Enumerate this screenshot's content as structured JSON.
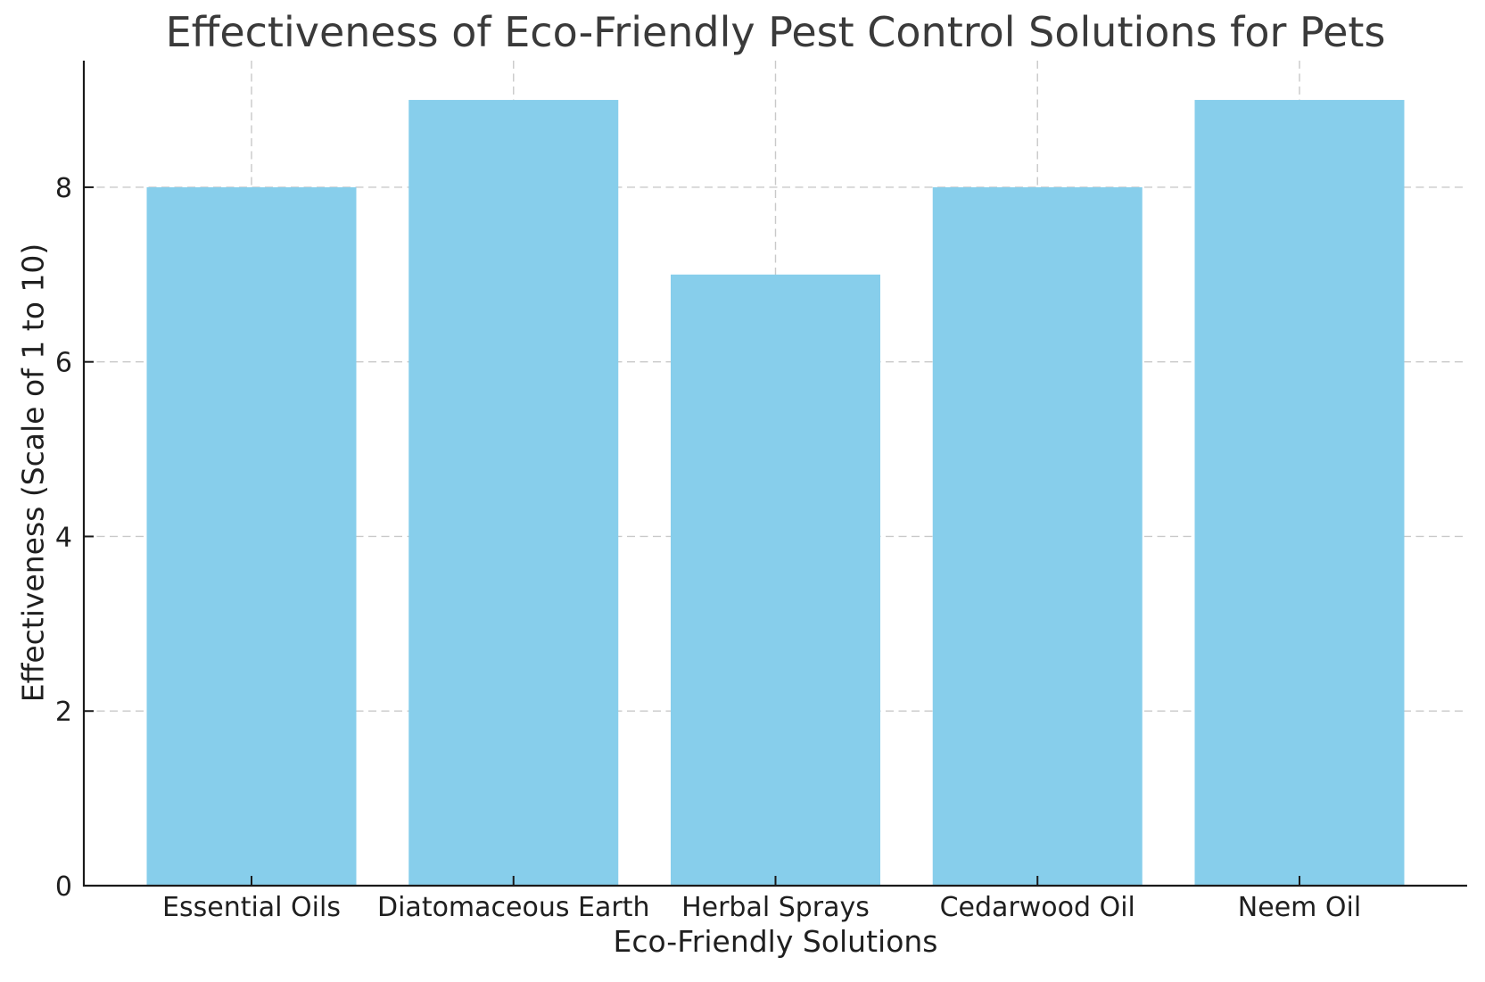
{
  "chart_data": {
    "type": "bar",
    "title": "Effectiveness of Eco-Friendly Pest Control Solutions for Pets",
    "xlabel": "Eco-Friendly Solutions",
    "ylabel": "Effectiveness (Scale of 1 to 10)",
    "categories": [
      "Essential Oils",
      "Diatomaceous Earth",
      "Herbal Sprays",
      "Cedarwood Oil",
      "Neem Oil"
    ],
    "values": [
      8,
      9,
      7,
      8,
      9
    ],
    "ylim": [
      0,
      9.45
    ],
    "yticks": [
      0,
      2,
      4,
      6,
      8
    ],
    "bar_color": "#87CEEB",
    "grid": "dashed gridlines, horizontal at yticks and vertical at category centers",
    "grid_color": "#c9c9c9",
    "spine_color": "#1a1a1a",
    "text_color": "#1f1f1f",
    "title_color": "#3a3a3a",
    "background": "#ffffff",
    "legend": "none"
  }
}
